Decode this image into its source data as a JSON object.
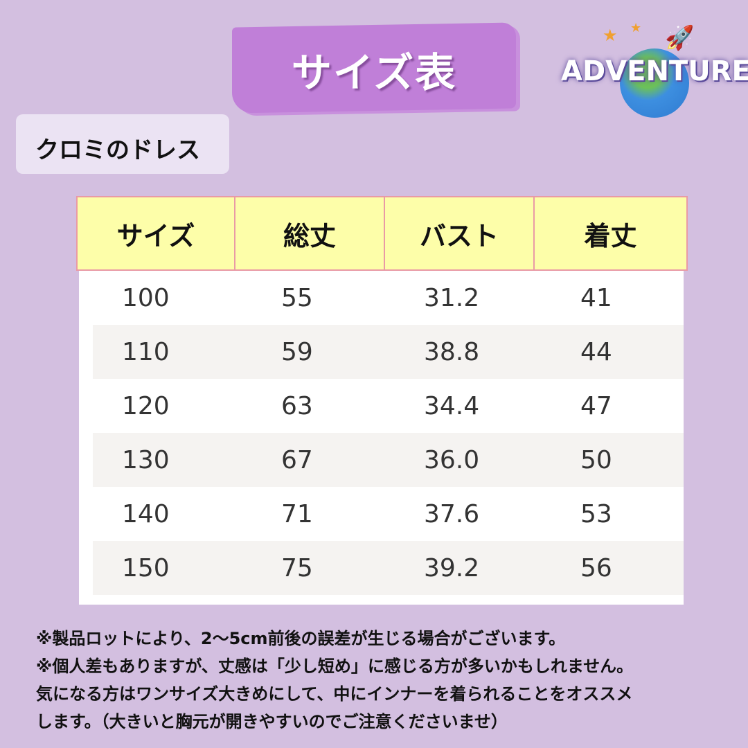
{
  "title": "サイズ表",
  "logo": {
    "text": "ADVENTURE"
  },
  "product": "クロミのドレス",
  "table": {
    "headers": [
      "サイズ",
      "総丈",
      "バスト",
      "着丈"
    ],
    "rows": [
      [
        "100",
        "55",
        "31.2",
        "41"
      ],
      [
        "110",
        "59",
        "38.8",
        "44"
      ],
      [
        "120",
        "63",
        "34.4",
        "47"
      ],
      [
        "130",
        "67",
        "36.0",
        "50"
      ],
      [
        "140",
        "71",
        "37.6",
        "53"
      ],
      [
        "150",
        "75",
        "39.2",
        "56"
      ]
    ]
  },
  "notes": [
    "※製品ロットにより、2〜5cm前後の誤差が生じる場合がございます。",
    "※個人差もありますが、丈感は「少し短め」に感じる方が多いかもしれません。",
    "気になる方はワンサイズ大きめにして、中にインナーを着られることをオススメ",
    "します。（大きいと胸元が開きやすいのでご注意くださいませ）"
  ]
}
